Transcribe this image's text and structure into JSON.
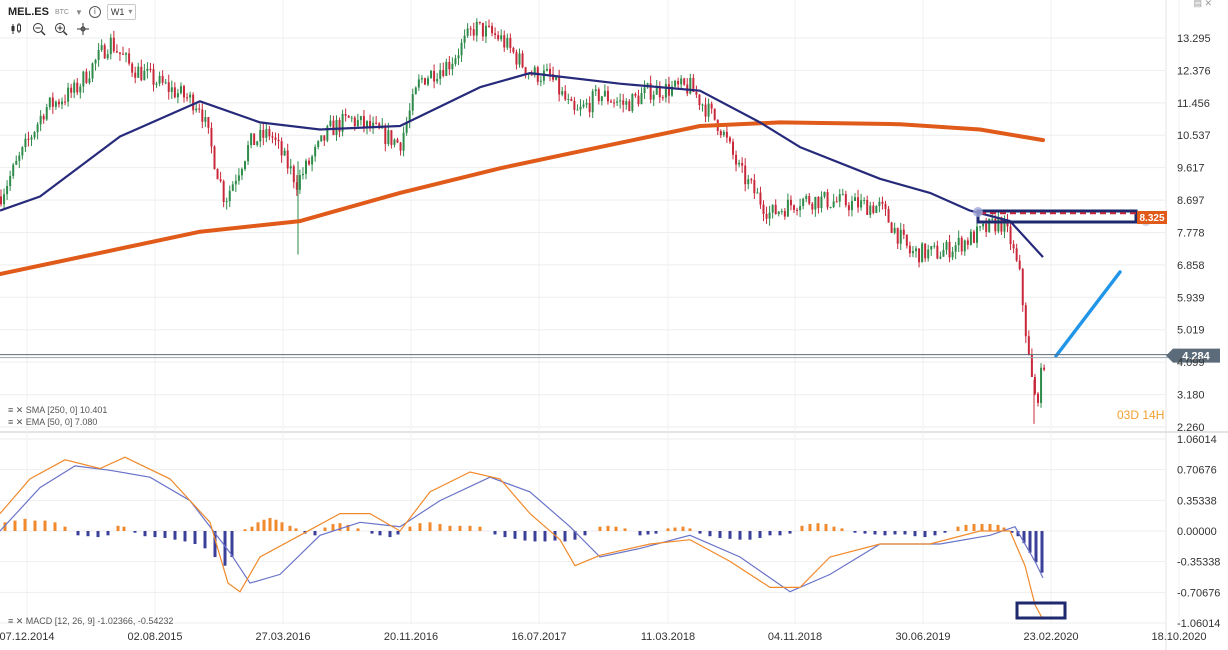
{
  "header": {
    "symbol": "MEL.ES",
    "exchange": "BTC",
    "timeframe": "W1",
    "info_glyph": "i",
    "tool_icons": [
      "candle-type-icon",
      "zoom-out-icon",
      "zoom-in-icon",
      "crosshair-icon"
    ]
  },
  "colors": {
    "bull": "#2e8b4a",
    "bear": "#c8283a",
    "sma": "#e05a1a",
    "ema": "#262a7a",
    "macd_line": "#f08a2c",
    "signal_line": "#6a74c8",
    "hist_pos": "#f08a2c",
    "hist_neg": "#3a3f9a",
    "trend_arrow": "#2196e8",
    "box": "#1f2a6e",
    "countdown": "#f0a030"
  },
  "indicators": {
    "sma_label": "SMA [250, 0] 10.401",
    "ema_label": "EMA [50, 0] 7.080",
    "macd_label": "MACD [12, 26, 9] -1.02366, -0.54232"
  },
  "countdown": "03D 14H",
  "chart_data": [
    {
      "type": "candlestick",
      "title": "",
      "x_tick_labels": [
        "07.12.2014",
        "02.08.2015",
        "27.03.2016",
        "20.11.2016",
        "16.07.2017",
        "11.03.2018",
        "04.11.2018",
        "30.06.2019",
        "23.02.2020",
        "18.10.2020"
      ],
      "y_tick_labels": [
        "13.295",
        "12.376",
        "11.456",
        "10.537",
        "9.617",
        "8.697",
        "7.778",
        "6.858",
        "5.939",
        "5.019",
        "4.099",
        "3.180",
        "2.260"
      ],
      "ylim": [
        2.26,
        13.9
      ],
      "last_price": "4.284",
      "level_label": "8.325",
      "close_path": [
        [
          0,
          8.8
        ],
        [
          20,
          9.9
        ],
        [
          45,
          11.3
        ],
        [
          75,
          11.8
        ],
        [
          110,
          13.2
        ],
        [
          130,
          12.5
        ],
        [
          160,
          12.0
        ],
        [
          200,
          11.4
        ],
        [
          225,
          8.7
        ],
        [
          250,
          10.3
        ],
        [
          270,
          10.6
        ],
        [
          297,
          9.2
        ],
        [
          330,
          10.7
        ],
        [
          350,
          11.0
        ],
        [
          380,
          10.6
        ],
        [
          400,
          10.3
        ],
        [
          420,
          12.1
        ],
        [
          450,
          12.6
        ],
        [
          475,
          13.6
        ],
        [
          500,
          13.3
        ],
        [
          530,
          12.3
        ],
        [
          550,
          12.2
        ],
        [
          575,
          11.1
        ],
        [
          600,
          11.7
        ],
        [
          625,
          11.4
        ],
        [
          650,
          11.8
        ],
        [
          690,
          11.9
        ],
        [
          720,
          10.8
        ],
        [
          740,
          9.5
        ],
        [
          770,
          8.3
        ],
        [
          800,
          8.7
        ],
        [
          820,
          8.7
        ],
        [
          850,
          8.6
        ],
        [
          880,
          8.5
        ],
        [
          910,
          7.2
        ],
        [
          940,
          7.2
        ],
        [
          970,
          7.6
        ],
        [
          1000,
          8.1
        ],
        [
          1010,
          7.6
        ],
        [
          1020,
          6.5
        ],
        [
          1030,
          3.9
        ],
        [
          1036,
          2.9
        ],
        [
          1045,
          4.28
        ]
      ],
      "series": [
        {
          "name": "SMA [250, 0]",
          "points": [
            [
              0,
              6.6
            ],
            [
              100,
              7.2
            ],
            [
              200,
              7.8
            ],
            [
              300,
              8.1
            ],
            [
              400,
              8.9
            ],
            [
              500,
              9.6
            ],
            [
              600,
              10.2
            ],
            [
              700,
              10.8
            ],
            [
              780,
              10.9
            ],
            [
              900,
              10.85
            ],
            [
              980,
              10.7
            ],
            [
              1043,
              10.4
            ]
          ]
        },
        {
          "name": "EMA [50, 0]",
          "points": [
            [
              0,
              8.4
            ],
            [
              40,
              8.8
            ],
            [
              120,
              10.5
            ],
            [
              200,
              11.5
            ],
            [
              260,
              10.9
            ],
            [
              320,
              10.7
            ],
            [
              400,
              10.8
            ],
            [
              480,
              11.9
            ],
            [
              530,
              12.3
            ],
            [
              620,
              12.0
            ],
            [
              700,
              11.8
            ],
            [
              760,
              10.9
            ],
            [
              800,
              10.2
            ],
            [
              880,
              9.3
            ],
            [
              930,
              8.9
            ],
            [
              970,
              8.4
            ],
            [
              1010,
              8.1
            ],
            [
              1043,
              7.08
            ]
          ]
        }
      ]
    },
    {
      "type": "macd",
      "title": "",
      "y_tick_labels": [
        "1.06014",
        "0.70676",
        "0.35338",
        "0.00000",
        "-0.35338",
        "-0.70676",
        "-1.06014"
      ],
      "ylim": [
        -1.06014,
        1.06014
      ],
      "series": [
        {
          "name": "MACD",
          "points": [
            [
              0,
              0.2
            ],
            [
              30,
              0.6
            ],
            [
              65,
              0.82
            ],
            [
              100,
              0.72
            ],
            [
              125,
              0.85
            ],
            [
              170,
              0.6
            ],
            [
              210,
              0.1
            ],
            [
              228,
              -0.6
            ],
            [
              240,
              -0.7
            ],
            [
              260,
              -0.3
            ],
            [
              300,
              -0.05
            ],
            [
              340,
              0.2
            ],
            [
              370,
              0.2
            ],
            [
              400,
              0.0
            ],
            [
              430,
              0.45
            ],
            [
              470,
              0.68
            ],
            [
              500,
              0.6
            ],
            [
              530,
              0.2
            ],
            [
              560,
              -0.1
            ],
            [
              575,
              -0.4
            ],
            [
              600,
              -0.28
            ],
            [
              650,
              -0.15
            ],
            [
              690,
              -0.1
            ],
            [
              730,
              -0.35
            ],
            [
              770,
              -0.65
            ],
            [
              800,
              -0.65
            ],
            [
              830,
              -0.3
            ],
            [
              880,
              -0.15
            ],
            [
              930,
              -0.15
            ],
            [
              980,
              0.0
            ],
            [
              1010,
              0.0
            ],
            [
              1025,
              -0.4
            ],
            [
              1035,
              -0.85
            ],
            [
              1043,
              -1.02
            ]
          ]
        },
        {
          "name": "Signal",
          "points": [
            [
              0,
              0.0
            ],
            [
              40,
              0.5
            ],
            [
              75,
              0.75
            ],
            [
              110,
              0.7
            ],
            [
              150,
              0.62
            ],
            [
              190,
              0.35
            ],
            [
              230,
              -0.25
            ],
            [
              250,
              -0.6
            ],
            [
              280,
              -0.5
            ],
            [
              320,
              -0.05
            ],
            [
              360,
              0.1
            ],
            [
              400,
              0.05
            ],
            [
              440,
              0.35
            ],
            [
              490,
              0.62
            ],
            [
              530,
              0.45
            ],
            [
              570,
              0.05
            ],
            [
              600,
              -0.3
            ],
            [
              640,
              -0.2
            ],
            [
              690,
              -0.05
            ],
            [
              740,
              -0.3
            ],
            [
              790,
              -0.7
            ],
            [
              830,
              -0.5
            ],
            [
              880,
              -0.15
            ],
            [
              940,
              -0.15
            ],
            [
              990,
              -0.05
            ],
            [
              1015,
              0.05
            ],
            [
              1035,
              -0.35
            ],
            [
              1043,
              -0.54
            ]
          ]
        }
      ],
      "histogram": [
        [
          5,
          0.1
        ],
        [
          15,
          0.12
        ],
        [
          25,
          0.14
        ],
        [
          35,
          0.12
        ],
        [
          45,
          0.12
        ],
        [
          55,
          0.1
        ],
        [
          65,
          0.05
        ],
        [
          78,
          -0.05
        ],
        [
          88,
          -0.06
        ],
        [
          98,
          -0.07
        ],
        [
          108,
          -0.05
        ],
        [
          118,
          0.06
        ],
        [
          124,
          0.05
        ],
        [
          135,
          -0.02
        ],
        [
          145,
          -0.06
        ],
        [
          155,
          -0.07
        ],
        [
          165,
          -0.08
        ],
        [
          175,
          -0.1
        ],
        [
          185,
          -0.12
        ],
        [
          195,
          -0.15
        ],
        [
          205,
          -0.2
        ],
        [
          215,
          -0.3
        ],
        [
          225,
          -0.4
        ],
        [
          232,
          -0.3
        ],
        [
          245,
          0.02
        ],
        [
          252,
          0.05
        ],
        [
          258,
          0.1
        ],
        [
          264,
          0.13
        ],
        [
          270,
          0.15
        ],
        [
          276,
          0.13
        ],
        [
          282,
          0.1
        ],
        [
          290,
          0.06
        ],
        [
          296,
          0.03
        ],
        [
          305,
          -0.03
        ],
        [
          315,
          -0.05
        ],
        [
          325,
          0.04
        ],
        [
          333,
          0.08
        ],
        [
          340,
          0.09
        ],
        [
          348,
          0.07
        ],
        [
          358,
          0.03
        ],
        [
          372,
          -0.03
        ],
        [
          380,
          -0.05
        ],
        [
          390,
          -0.07
        ],
        [
          398,
          -0.04
        ],
        [
          410,
          0.05
        ],
        [
          420,
          0.09
        ],
        [
          430,
          0.1
        ],
        [
          440,
          0.08
        ],
        [
          450,
          0.06
        ],
        [
          460,
          0.06
        ],
        [
          470,
          0.06
        ],
        [
          480,
          0.05
        ],
        [
          495,
          -0.04
        ],
        [
          505,
          -0.07
        ],
        [
          515,
          -0.09
        ],
        [
          525,
          -0.11
        ],
        [
          535,
          -0.12
        ],
        [
          545,
          -0.12
        ],
        [
          555,
          -0.11
        ],
        [
          565,
          -0.12
        ],
        [
          575,
          -0.1
        ],
        [
          585,
          -0.05
        ],
        [
          600,
          0.05
        ],
        [
          608,
          0.06
        ],
        [
          616,
          0.05
        ],
        [
          625,
          0.03
        ],
        [
          640,
          -0.05
        ],
        [
          648,
          -0.04
        ],
        [
          656,
          -0.03
        ],
        [
          668,
          0.03
        ],
        [
          675,
          0.04
        ],
        [
          683,
          0.05
        ],
        [
          690,
          0.03
        ],
        [
          700,
          -0.03
        ],
        [
          710,
          -0.06
        ],
        [
          720,
          -0.08
        ],
        [
          730,
          -0.09
        ],
        [
          740,
          -0.1
        ],
        [
          750,
          -0.1
        ],
        [
          760,
          -0.08
        ],
        [
          770,
          -0.05
        ],
        [
          780,
          -0.05
        ],
        [
          790,
          -0.03
        ],
        [
          802,
          0.06
        ],
        [
          810,
          0.08
        ],
        [
          818,
          0.09
        ],
        [
          826,
          0.08
        ],
        [
          834,
          0.05
        ],
        [
          842,
          0.03
        ],
        [
          855,
          -0.02
        ],
        [
          865,
          -0.03
        ],
        [
          875,
          -0.04
        ],
        [
          885,
          -0.05
        ],
        [
          895,
          -0.04
        ],
        [
          905,
          -0.04
        ],
        [
          915,
          -0.06
        ],
        [
          925,
          -0.07
        ],
        [
          935,
          -0.05
        ],
        [
          945,
          -0.02
        ],
        [
          958,
          0.05
        ],
        [
          966,
          0.07
        ],
        [
          974,
          0.08
        ],
        [
          982,
          0.08
        ],
        [
          990,
          0.08
        ],
        [
          998,
          0.07
        ],
        [
          1004,
          0.04
        ],
        [
          1012,
          -0.02
        ],
        [
          1018,
          -0.06
        ],
        [
          1024,
          -0.14
        ],
        [
          1030,
          -0.25
        ],
        [
          1036,
          -0.36
        ],
        [
          1042,
          -0.48
        ]
      ]
    }
  ]
}
